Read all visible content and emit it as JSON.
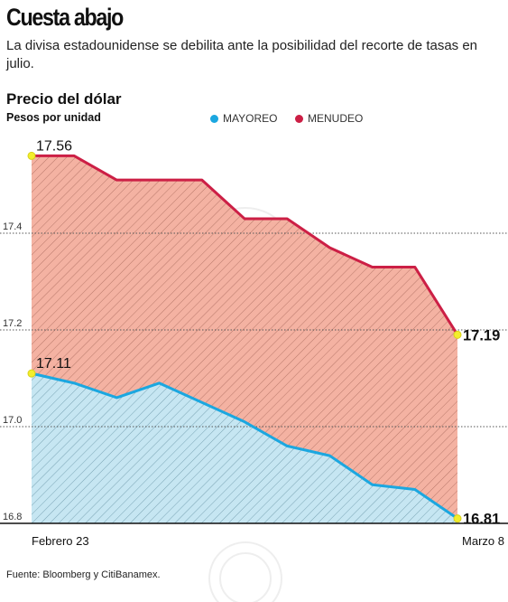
{
  "header": {
    "title": "Cuesta abajo",
    "subtitle": "La divisa estadounidense se debilita ante la posibilidad del recorte de tasas en julio."
  },
  "source": "Fuente: Bloomberg y CitiBanamex.",
  "colors": {
    "mayoreo": "#1ba7e0",
    "menudeo": "#cc1f45",
    "mayoreo_fill": "#c6e6f2",
    "menudeo_fill": "#f4b2a2",
    "endpoint": "#f3ee2c"
  },
  "chart_data": {
    "type": "area",
    "title": "Precio del dólar",
    "ylabel": "Pesos por unidad",
    "xlabel": "",
    "legend_position": "top-center",
    "grid": "horizontal-dotted",
    "ylim": [
      16.8,
      17.6
    ],
    "yticks": [
      "16.8",
      "17.0",
      "17.2",
      "17.4"
    ],
    "x_labels": [
      "Febrero 23",
      "Marzo 8"
    ],
    "series": [
      {
        "name": "MAYOREO",
        "values": [
          17.11,
          17.09,
          17.06,
          17.09,
          17.05,
          17.01,
          16.96,
          16.94,
          16.88,
          16.87,
          16.81
        ],
        "start_label": "17.11",
        "end_label": "16.81"
      },
      {
        "name": "MENUDEO",
        "values": [
          17.56,
          17.56,
          17.51,
          17.51,
          17.51,
          17.43,
          17.43,
          17.37,
          17.33,
          17.33,
          17.19
        ],
        "start_label": "17.56",
        "end_label": "17.19"
      }
    ]
  }
}
